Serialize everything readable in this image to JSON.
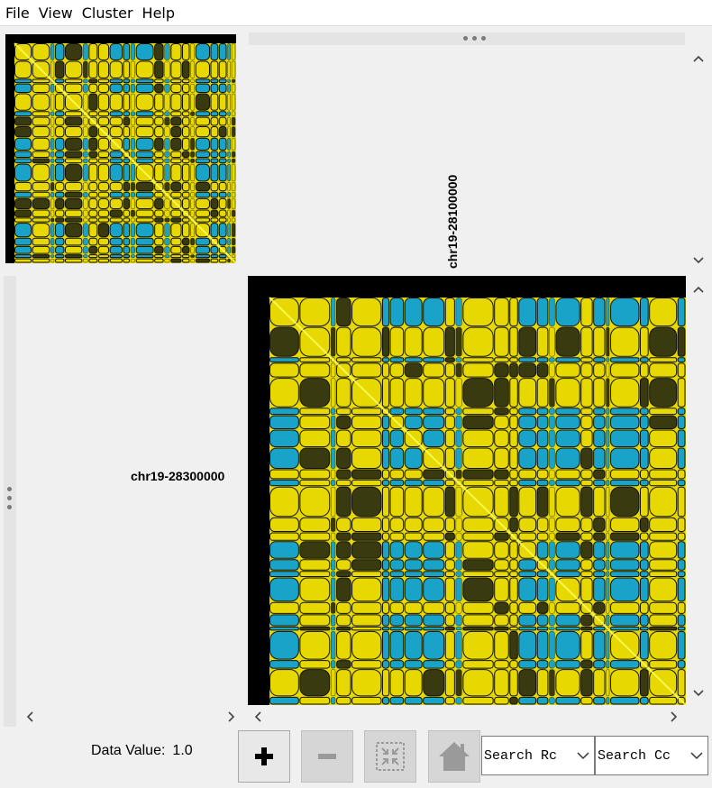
{
  "menu": {
    "items": [
      {
        "label": "File"
      },
      {
        "label": "View"
      },
      {
        "label": "Cluster"
      },
      {
        "label": "Help"
      }
    ]
  },
  "labels": {
    "column_label": "chr19-28100000",
    "row_label": "chr19-28300000"
  },
  "status": {
    "data_value_label": "Data Value:",
    "data_value": "1.0"
  },
  "toolbar": {
    "zoom_in_icon": "plus-icon",
    "zoom_out_icon": "minus-icon",
    "fit_icon": "fit-selection-icon",
    "home_icon": "home-icon"
  },
  "search": {
    "rows_value": "Search Rc",
    "columns_value": "Search Cc"
  },
  "colors": {
    "heatmap_high": "#e6d800",
    "heatmap_low": "#1aa3c8",
    "heatmap_background": "#000000"
  }
}
